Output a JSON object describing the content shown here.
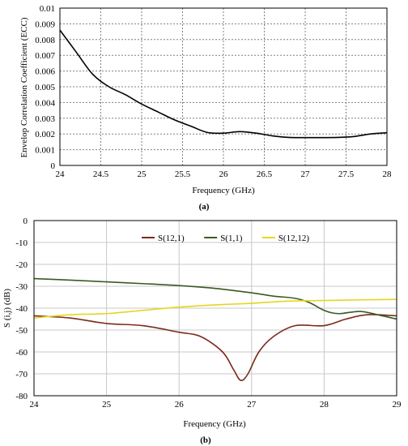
{
  "chart_data": [
    {
      "type": "line",
      "title": "",
      "caption": "(a)",
      "xlabel": "Frequency (GHz)",
      "ylabel": "Envelop Correlation Coefficient (ECC)",
      "xlim": [
        24,
        28
      ],
      "ylim": [
        0,
        0.01
      ],
      "x_ticks": [
        24,
        24.5,
        25,
        25.5,
        26,
        26.5,
        27,
        27.5,
        28
      ],
      "x_tick_labels": [
        "24",
        "24.5",
        "25",
        "25.5",
        "26",
        "26.5",
        "27",
        "27.5",
        "28"
      ],
      "y_ticks": [
        0,
        0.001,
        0.002,
        0.003,
        0.004,
        0.005,
        0.006,
        0.007,
        0.008,
        0.009,
        0.01
      ],
      "y_tick_labels": [
        "0",
        "0.001",
        "0.002",
        "0.003",
        "0.004",
        "0.005",
        "0.006",
        "0.007",
        "0.008",
        "0.009",
        "0.01"
      ],
      "grid": "dotted",
      "series": [
        {
          "color": "#000000",
          "x": [
            24,
            24.2,
            24.4,
            24.6,
            24.8,
            25,
            25.2,
            25.4,
            25.6,
            25.8,
            26,
            26.2,
            26.4,
            26.6,
            26.8,
            27,
            27.2,
            27.4,
            27.6,
            27.8,
            28
          ],
          "y": [
            0.0086,
            0.0072,
            0.0058,
            0.005,
            0.0045,
            0.0039,
            0.0034,
            0.0029,
            0.0025,
            0.0021,
            0.00205,
            0.00215,
            0.00205,
            0.00188,
            0.00178,
            0.00177,
            0.00177,
            0.00178,
            0.00184,
            0.002,
            0.00208
          ]
        }
      ]
    },
    {
      "type": "line",
      "title": "",
      "caption": "(b)",
      "xlabel": "Frequency (GHz)",
      "ylabel": "S (i,j) (dB)",
      "xlim": [
        24,
        29
      ],
      "ylim": [
        -80,
        0
      ],
      "x_ticks": [
        24,
        25,
        26,
        27,
        28,
        29
      ],
      "x_tick_labels": [
        "24",
        "25",
        "26",
        "27",
        "28",
        "29"
      ],
      "y_ticks": [
        0,
        -10,
        -20,
        -30,
        -40,
        -50,
        -60,
        -70,
        -80
      ],
      "y_tick_labels": [
        "0",
        "-10",
        "-20",
        "-30",
        "-40",
        "-50",
        "-60",
        "-70",
        "-80"
      ],
      "grid": "solid",
      "legend": "top-center",
      "series": [
        {
          "name": "S(12,1)",
          "color": "#7b2b1b",
          "x": [
            24,
            24.5,
            25,
            25.5,
            26,
            26.3,
            26.6,
            26.75,
            26.85,
            26.95,
            27.1,
            27.3,
            27.6,
            28,
            28.3,
            28.6,
            29
          ],
          "y": [
            -43.5,
            -44.5,
            -47,
            -48,
            -51,
            -53,
            -60,
            -68,
            -73,
            -70,
            -60,
            -53,
            -48,
            -48,
            -45,
            -43,
            -43.5
          ]
        },
        {
          "name": "S(1,1)",
          "color": "#3b5a22",
          "x": [
            24,
            24.5,
            25,
            25.5,
            26,
            26.5,
            27,
            27.3,
            27.6,
            27.8,
            28,
            28.2,
            28.5,
            28.8,
            29
          ],
          "y": [
            -26.5,
            -27.2,
            -28,
            -28.8,
            -29.7,
            -31,
            -33,
            -34.5,
            -35.5,
            -37.5,
            -41,
            -42.5,
            -41.5,
            -43.5,
            -45
          ]
        },
        {
          "name": "S(12,12)",
          "color": "#e6d61e",
          "x": [
            24,
            24.5,
            25,
            25.5,
            26,
            26.5,
            27,
            27.5,
            28,
            28.5,
            29
          ],
          "y": [
            -44.5,
            -43,
            -42.5,
            -41,
            -39.5,
            -38.5,
            -37.8,
            -36.8,
            -36.5,
            -36.2,
            -36
          ]
        }
      ]
    }
  ]
}
